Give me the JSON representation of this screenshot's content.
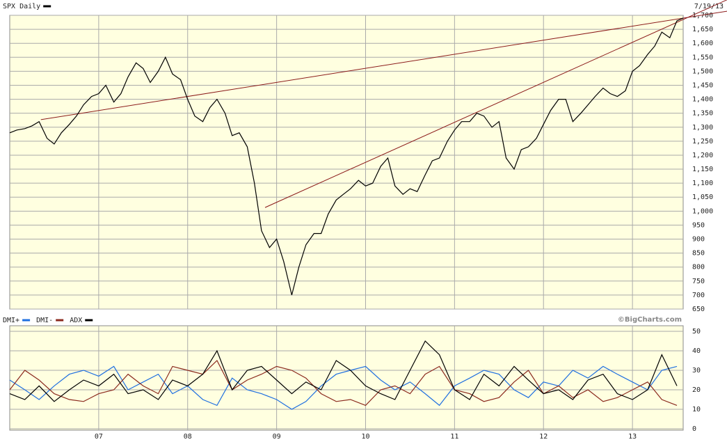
{
  "chart_data": [
    {
      "type": "line",
      "date_label": "7/19/13",
      "x": [
        2006.0,
        2006.08,
        2006.17,
        2006.25,
        2006.33,
        2006.42,
        2006.5,
        2006.58,
        2006.67,
        2006.75,
        2006.83,
        2006.92,
        2007.0,
        2007.08,
        2007.17,
        2007.25,
        2007.33,
        2007.42,
        2007.5,
        2007.58,
        2007.67,
        2007.75,
        2007.83,
        2007.92,
        2008.0,
        2008.08,
        2008.17,
        2008.25,
        2008.33,
        2008.42,
        2008.5,
        2008.58,
        2008.67,
        2008.75,
        2008.83,
        2008.92,
        2009.0,
        2009.08,
        2009.17,
        2009.25,
        2009.33,
        2009.42,
        2009.5,
        2009.58,
        2009.67,
        2009.75,
        2009.83,
        2009.92,
        2010.0,
        2010.08,
        2010.17,
        2010.25,
        2010.33,
        2010.42,
        2010.5,
        2010.58,
        2010.67,
        2010.75,
        2010.83,
        2010.92,
        2011.0,
        2011.08,
        2011.17,
        2011.25,
        2011.33,
        2011.42,
        2011.5,
        2011.58,
        2011.67,
        2011.75,
        2011.83,
        2011.92,
        2012.0,
        2012.08,
        2012.17,
        2012.25,
        2012.33,
        2012.42,
        2012.5,
        2012.58,
        2012.67,
        2012.75,
        2012.83,
        2012.92,
        2013.0,
        2013.08,
        2013.17,
        2013.25,
        2013.33,
        2013.42,
        2013.5,
        2013.57
      ],
      "series": [
        {
          "name": "SPX Daily",
          "color": "#000000",
          "values": [
            1280,
            1290,
            1295,
            1305,
            1320,
            1260,
            1240,
            1280,
            1310,
            1340,
            1380,
            1410,
            1420,
            1450,
            1390,
            1420,
            1480,
            1530,
            1510,
            1460,
            1500,
            1550,
            1490,
            1470,
            1400,
            1340,
            1320,
            1370,
            1400,
            1350,
            1270,
            1280,
            1230,
            1100,
            930,
            870,
            900,
            820,
            700,
            800,
            880,
            920,
            920,
            990,
            1040,
            1060,
            1080,
            1110,
            1090,
            1100,
            1160,
            1190,
            1090,
            1060,
            1080,
            1070,
            1130,
            1180,
            1190,
            1250,
            1290,
            1320,
            1320,
            1350,
            1340,
            1300,
            1320,
            1190,
            1150,
            1220,
            1230,
            1260,
            1310,
            1360,
            1400,
            1400,
            1320,
            1350,
            1380,
            1410,
            1440,
            1420,
            1410,
            1430,
            1500,
            1520,
            1560,
            1590,
            1640,
            1620,
            1680,
            1690
          ]
        }
      ],
      "trendline_color": "#8b1a1a",
      "trendlines": [
        {
          "x": [
            2006.35,
            2013.57
          ],
          "values": [
            1327,
            1690
          ]
        },
        {
          "x": [
            2008.87,
            2013.57
          ],
          "values": [
            1013,
            1685
          ]
        }
      ],
      "xlim": [
        2006.0,
        2013.57
      ],
      "ylim": [
        650,
        1700
      ],
      "yticks": [
        650,
        700,
        750,
        800,
        850,
        900,
        950,
        {
          "value": 1000,
          "label": "1,000"
        },
        {
          "value": 1050,
          "label": "1,050"
        },
        {
          "value": 1100,
          "label": "1,100"
        },
        {
          "value": 1150,
          "label": "1,150"
        },
        {
          "value": 1200,
          "label": "1,200"
        },
        {
          "value": 1250,
          "label": "1,250"
        },
        {
          "value": 1300,
          "label": "1,300"
        },
        {
          "value": 1350,
          "label": "1,350"
        },
        {
          "value": 1400,
          "label": "1,400"
        },
        {
          "value": 1450,
          "label": "1,450"
        },
        {
          "value": 1500,
          "label": "1,500"
        },
        {
          "value": 1550,
          "label": "1,550"
        },
        {
          "value": 1600,
          "label": "1,600"
        },
        {
          "value": 1650,
          "label": "1,650"
        },
        {
          "value": 1700,
          "label": "1,700"
        }
      ],
      "grid": true
    },
    {
      "type": "line",
      "source": "©BigCharts.com",
      "x": [
        2006.0,
        2006.17,
        2006.33,
        2006.5,
        2006.67,
        2006.83,
        2007.0,
        2007.17,
        2007.33,
        2007.5,
        2007.67,
        2007.83,
        2008.0,
        2008.17,
        2008.33,
        2008.5,
        2008.67,
        2008.83,
        2009.0,
        2009.17,
        2009.33,
        2009.5,
        2009.67,
        2009.83,
        2010.0,
        2010.17,
        2010.33,
        2010.5,
        2010.67,
        2010.83,
        2011.0,
        2011.17,
        2011.33,
        2011.5,
        2011.67,
        2011.83,
        2012.0,
        2012.17,
        2012.33,
        2012.5,
        2012.67,
        2012.83,
        2013.0,
        2013.17,
        2013.33,
        2013.5
      ],
      "series": [
        {
          "name": "DMI+",
          "color": "#1f6fe0",
          "values": [
            25,
            20,
            15,
            22,
            28,
            30,
            27,
            32,
            20,
            24,
            28,
            18,
            22,
            15,
            12,
            26,
            20,
            18,
            15,
            10,
            14,
            22,
            28,
            30,
            32,
            25,
            20,
            24,
            18,
            12,
            22,
            26,
            30,
            28,
            20,
            16,
            24,
            22,
            30,
            26,
            32,
            28,
            24,
            20,
            30,
            32
          ]
        },
        {
          "name": "DMI-",
          "color": "#8b2a1e",
          "values": [
            20,
            30,
            25,
            18,
            15,
            14,
            18,
            20,
            28,
            22,
            18,
            32,
            30,
            28,
            35,
            20,
            25,
            28,
            32,
            30,
            26,
            18,
            14,
            15,
            12,
            20,
            22,
            18,
            28,
            32,
            20,
            18,
            14,
            16,
            24,
            30,
            18,
            22,
            16,
            20,
            14,
            16,
            20,
            24,
            15,
            12
          ]
        },
        {
          "name": "ADX",
          "color": "#000000",
          "values": [
            18,
            15,
            22,
            14,
            20,
            25,
            22,
            28,
            18,
            20,
            15,
            25,
            22,
            28,
            40,
            20,
            30,
            32,
            25,
            18,
            24,
            20,
            35,
            30,
            22,
            18,
            15,
            30,
            45,
            38,
            20,
            15,
            28,
            22,
            32,
            25,
            18,
            20,
            15,
            25,
            28,
            18,
            15,
            20,
            38,
            22
          ]
        }
      ],
      "xlim": [
        2006.0,
        2013.57
      ],
      "xticks": [
        {
          "value": 2007,
          "label": "07"
        },
        {
          "value": 2008,
          "label": "08"
        },
        {
          "value": 2009,
          "label": "09"
        },
        {
          "value": 2010,
          "label": "10"
        },
        {
          "value": 2011,
          "label": "11"
        },
        {
          "value": 2012,
          "label": "12"
        },
        {
          "value": 2013,
          "label": "13"
        }
      ],
      "ylim": [
        0,
        50
      ],
      "yticks": [
        0,
        10,
        20,
        30,
        40,
        50
      ],
      "grid": true
    }
  ]
}
